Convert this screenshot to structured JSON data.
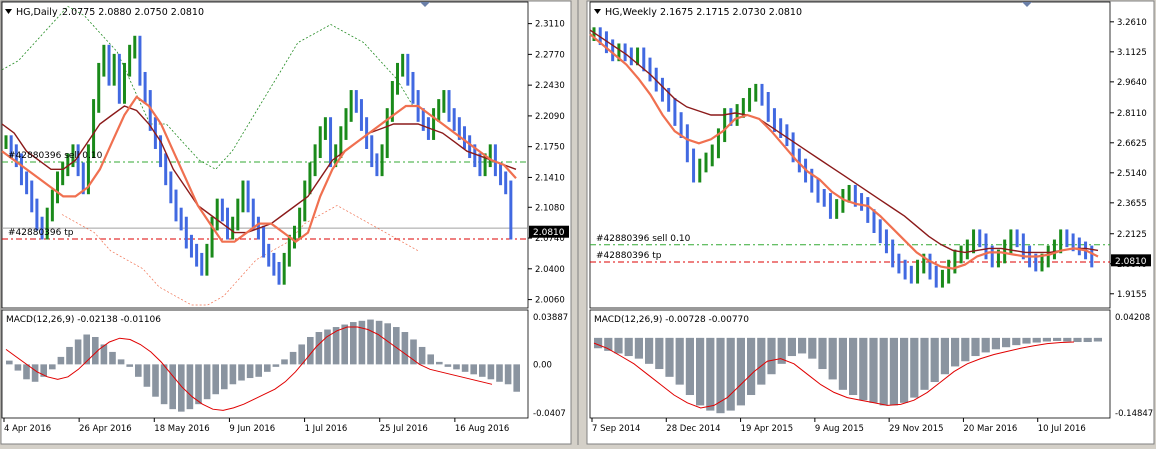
{
  "colors": {
    "chart_bg": "#ffffff",
    "bull": "#1a8a1a",
    "bear": "#4169e1",
    "ema_fast": "#f07050",
    "ma_slow": "#8b1a1a",
    "order_line": "#dd0000",
    "sell_line": "#33aa33",
    "bollinger": "#228b22",
    "macd_hist": "#8a94a0",
    "macd_signal": "#e00000",
    "price_badge_bg": "#000000",
    "price_badge_fg": "#ffffff"
  },
  "icons": {
    "symbol_dropdown": "triangle-down-icon",
    "shift_marker": "triangle-down-icon"
  },
  "chart_data": [
    {
      "type": "bar",
      "symbol": "HG,Daily",
      "ohlc_header": "2.0775 2.0880 2.0750 2.0810",
      "current_price": "2.0810",
      "price_ticks": [
        "2.3110",
        "2.2770",
        "2.2430",
        "2.2090",
        "2.1750",
        "2.1410",
        "2.1080",
        "2.0740",
        "2.0400",
        "2.0060"
      ],
      "ylim": [
        2.0,
        2.315
      ],
      "x_ticks": [
        "4 Apr 2016",
        "26 Apr 2016",
        "18 May 2016",
        "9 Jun 2016",
        "1 Jul 2016",
        "25 Jul 2016",
        "16 Aug 2016"
      ],
      "order_labels": {
        "sell": "#42880396 sell 0.10",
        "tp": "#42880396 tp"
      },
      "levels": {
        "sell": 2.158,
        "tp": 2.073,
        "ask_line": 2.085
      },
      "closes": [
        2.18,
        2.17,
        2.16,
        2.14,
        2.13,
        2.11,
        2.09,
        2.08,
        2.1,
        2.12,
        2.14,
        2.15,
        2.16,
        2.17,
        2.15,
        2.13,
        2.17,
        2.22,
        2.26,
        2.28,
        2.25,
        2.27,
        2.23,
        2.26,
        2.28,
        2.29,
        2.25,
        2.23,
        2.2,
        2.18,
        2.16,
        2.14,
        2.12,
        2.1,
        2.09,
        2.07,
        2.06,
        2.05,
        2.04,
        2.06,
        2.09,
        2.11,
        2.1,
        2.08,
        2.09,
        2.11,
        2.13,
        2.11,
        2.09,
        2.08,
        2.06,
        2.05,
        2.04,
        2.03,
        2.05,
        2.07,
        2.08,
        2.1,
        2.13,
        2.15,
        2.17,
        2.19,
        2.2,
        2.16,
        2.17,
        2.19,
        2.21,
        2.23,
        2.22,
        2.2,
        2.18,
        2.16,
        2.15,
        2.17,
        2.21,
        2.24,
        2.26,
        2.27,
        2.25,
        2.23,
        2.21,
        2.2,
        2.19,
        2.21,
        2.22,
        2.23,
        2.21,
        2.2,
        2.19,
        2.18,
        2.17,
        2.16,
        2.15,
        2.16,
        2.17,
        2.15,
        2.14,
        2.13,
        2.08
      ],
      "ema_fast": [
        2.17,
        2.16,
        2.15,
        2.14,
        2.13,
        2.12,
        2.12,
        2.13,
        2.15,
        2.18,
        2.21,
        2.23,
        2.22,
        2.2,
        2.17,
        2.14,
        2.11,
        2.09,
        2.07,
        2.07,
        2.08,
        2.09,
        2.09,
        2.08,
        2.07,
        2.08,
        2.12,
        2.15,
        2.17,
        2.18,
        2.19,
        2.2,
        2.21,
        2.22,
        2.22,
        2.21,
        2.2,
        2.19,
        2.18,
        2.17,
        2.16,
        2.155,
        2.14
      ],
      "ma_slow": [
        2.2,
        2.19,
        2.17,
        2.16,
        2.15,
        2.15,
        2.16,
        2.18,
        2.2,
        2.21,
        2.22,
        2.215,
        2.2,
        2.18,
        2.15,
        2.13,
        2.11,
        2.1,
        2.09,
        2.08,
        2.08,
        2.085,
        2.09,
        2.1,
        2.11,
        2.12,
        2.14,
        2.16,
        2.17,
        2.18,
        2.19,
        2.195,
        2.2,
        2.2,
        2.2,
        2.195,
        2.19,
        2.18,
        2.17,
        2.165,
        2.16,
        2.155,
        2.15
      ],
      "bb_upper": [
        2.26,
        2.27,
        2.29,
        2.31,
        2.33,
        2.32,
        2.3,
        2.28,
        2.24,
        2.2,
        2.2,
        2.18,
        2.16,
        2.15,
        2.17,
        2.2,
        2.23,
        2.26,
        2.29,
        2.3,
        2.31,
        2.3,
        2.29,
        2.27,
        2.25,
        2.22
      ],
      "bb_lower": [
        2.1,
        2.09,
        2.08,
        2.06,
        2.05,
        2.04,
        2.02,
        2.01,
        2.0,
        2.0,
        2.01,
        2.03,
        2.05,
        2.06,
        2.07,
        2.09,
        2.1,
        2.11,
        2.1,
        2.09,
        2.08,
        2.07,
        2.06
      ],
      "macd_label": "MACD(12,26,9) -0.02138 -0.01106",
      "macd_ticks": [
        "0.03887",
        "0.00",
        "-0.0407"
      ],
      "macd_ylim": [
        -0.0407,
        0.03887
      ],
      "macd_hist": [
        0.003,
        -0.005,
        -0.012,
        -0.014,
        -0.01,
        -0.004,
        0.006,
        0.014,
        0.02,
        0.024,
        0.022,
        0.016,
        0.01,
        0.004,
        -0.002,
        -0.01,
        -0.018,
        -0.026,
        -0.032,
        -0.036,
        -0.038,
        -0.036,
        -0.032,
        -0.028,
        -0.024,
        -0.02,
        -0.016,
        -0.013,
        -0.011,
        -0.01,
        -0.006,
        -0.002,
        0.004,
        0.01,
        0.016,
        0.022,
        0.026,
        0.028,
        0.03,
        0.032,
        0.034,
        0.035,
        0.036,
        0.035,
        0.033,
        0.03,
        0.026,
        0.02,
        0.014,
        0.008,
        0.002,
        -0.002,
        -0.004,
        -0.006,
        -0.008,
        -0.01,
        -0.012,
        -0.014,
        -0.016,
        -0.022
      ],
      "macd_signal": [
        0.012,
        0.006,
        0.0,
        -0.006,
        -0.01,
        -0.012,
        -0.01,
        -0.004,
        0.004,
        0.012,
        0.018,
        0.021,
        0.02,
        0.016,
        0.01,
        0.002,
        -0.008,
        -0.018,
        -0.026,
        -0.032,
        -0.036,
        -0.037,
        -0.035,
        -0.032,
        -0.028,
        -0.024,
        -0.02,
        -0.014,
        -0.006,
        0.004,
        0.014,
        0.022,
        0.027,
        0.03,
        0.03,
        0.028,
        0.024,
        0.018,
        0.012,
        0.006,
        0.0,
        -0.004,
        -0.006,
        -0.008,
        -0.01,
        -0.012,
        -0.014,
        -0.016
      ]
    },
    {
      "type": "bar",
      "symbol": "HG,Weekly",
      "ohlc_header": "2.1675 2.1715 2.0730 2.0810",
      "current_price": "2.0810",
      "price_ticks": [
        "3.2610",
        "3.1125",
        "2.9640",
        "2.8110",
        "2.6625",
        "2.5140",
        "2.3655",
        "2.2125",
        "2.0640",
        "1.9155"
      ],
      "ylim": [
        1.86,
        3.27
      ],
      "x_ticks": [
        "7 Sep 2014",
        "28 Dec 2014",
        "19 Apr 2015",
        "9 Aug 2015",
        "29 Nov 2015",
        "20 Mar 2016",
        "10 Jul 2016"
      ],
      "order_labels": {
        "sell": "#42880396 sell 0.10",
        "tp": "#42880396 tp"
      },
      "levels": {
        "sell": 2.158,
        "tp": 2.073
      },
      "closes": [
        3.2,
        3.18,
        3.14,
        3.1,
        3.12,
        3.1,
        3.08,
        3.1,
        3.05,
        3.0,
        2.95,
        2.9,
        2.85,
        2.78,
        2.72,
        2.6,
        2.5,
        2.55,
        2.58,
        2.62,
        2.7,
        2.8,
        2.78,
        2.82,
        2.85,
        2.9,
        2.92,
        2.88,
        2.8,
        2.75,
        2.72,
        2.68,
        2.6,
        2.55,
        2.5,
        2.45,
        2.4,
        2.38,
        2.32,
        2.35,
        2.4,
        2.42,
        2.38,
        2.36,
        2.3,
        2.25,
        2.2,
        2.15,
        2.08,
        2.05,
        2.02,
        2.0,
        2.05,
        2.08,
        2.02,
        1.98,
        2.0,
        2.05,
        2.1,
        2.12,
        2.15,
        2.2,
        2.18,
        2.12,
        2.08,
        2.1,
        2.15,
        2.2,
        2.18,
        2.12,
        2.08,
        2.06,
        2.08,
        2.12,
        2.15,
        2.2,
        2.18,
        2.16,
        2.14,
        2.12,
        2.08
      ],
      "ema_fast": [
        3.2,
        3.15,
        3.1,
        3.05,
        2.98,
        2.9,
        2.8,
        2.72,
        2.68,
        2.66,
        2.68,
        2.72,
        2.78,
        2.8,
        2.78,
        2.72,
        2.65,
        2.58,
        2.52,
        2.48,
        2.42,
        2.38,
        2.36,
        2.35,
        2.3,
        2.24,
        2.18,
        2.12,
        2.08,
        2.05,
        2.04,
        2.06,
        2.1,
        2.12,
        2.12,
        2.11,
        2.1,
        2.1,
        2.11,
        2.13,
        2.14,
        2.13,
        2.1
      ],
      "ma_slow": [
        3.22,
        3.18,
        3.14,
        3.1,
        3.05,
        3.0,
        2.94,
        2.88,
        2.84,
        2.82,
        2.8,
        2.8,
        2.81,
        2.8,
        2.78,
        2.74,
        2.7,
        2.66,
        2.62,
        2.58,
        2.54,
        2.5,
        2.46,
        2.42,
        2.38,
        2.34,
        2.3,
        2.25,
        2.2,
        2.16,
        2.13,
        2.12,
        2.13,
        2.14,
        2.14,
        2.13,
        2.12,
        2.12,
        2.12,
        2.13,
        2.14,
        2.14,
        2.13
      ],
      "macd_label": "MACD(12,26,9) -0.00728 -0.00770",
      "macd_ticks": [
        "0.04208",
        "-0.14847"
      ],
      "macd_ylim": [
        -0.14847,
        0.04208
      ],
      "macd_hist": [
        -0.02,
        -0.025,
        -0.03,
        -0.035,
        -0.04,
        -0.05,
        -0.06,
        -0.075,
        -0.09,
        -0.11,
        -0.13,
        -0.14,
        -0.145,
        -0.14,
        -0.13,
        -0.11,
        -0.09,
        -0.07,
        -0.05,
        -0.035,
        -0.03,
        -0.04,
        -0.06,
        -0.08,
        -0.1,
        -0.11,
        -0.12,
        -0.125,
        -0.13,
        -0.13,
        -0.125,
        -0.115,
        -0.1,
        -0.085,
        -0.07,
        -0.055,
        -0.045,
        -0.035,
        -0.028,
        -0.022,
        -0.018,
        -0.014,
        -0.011,
        -0.009,
        -0.007,
        -0.006,
        -0.007,
        -0.008,
        -0.008,
        -0.007
      ],
      "macd_signal": [
        -0.01,
        -0.02,
        -0.035,
        -0.05,
        -0.07,
        -0.09,
        -0.11,
        -0.125,
        -0.135,
        -0.13,
        -0.115,
        -0.09,
        -0.065,
        -0.045,
        -0.04,
        -0.05,
        -0.07,
        -0.09,
        -0.105,
        -0.115,
        -0.12,
        -0.125,
        -0.13,
        -0.128,
        -0.12,
        -0.105,
        -0.085,
        -0.065,
        -0.05,
        -0.04,
        -0.032,
        -0.026,
        -0.02,
        -0.015,
        -0.011,
        -0.009,
        -0.008
      ]
    }
  ]
}
